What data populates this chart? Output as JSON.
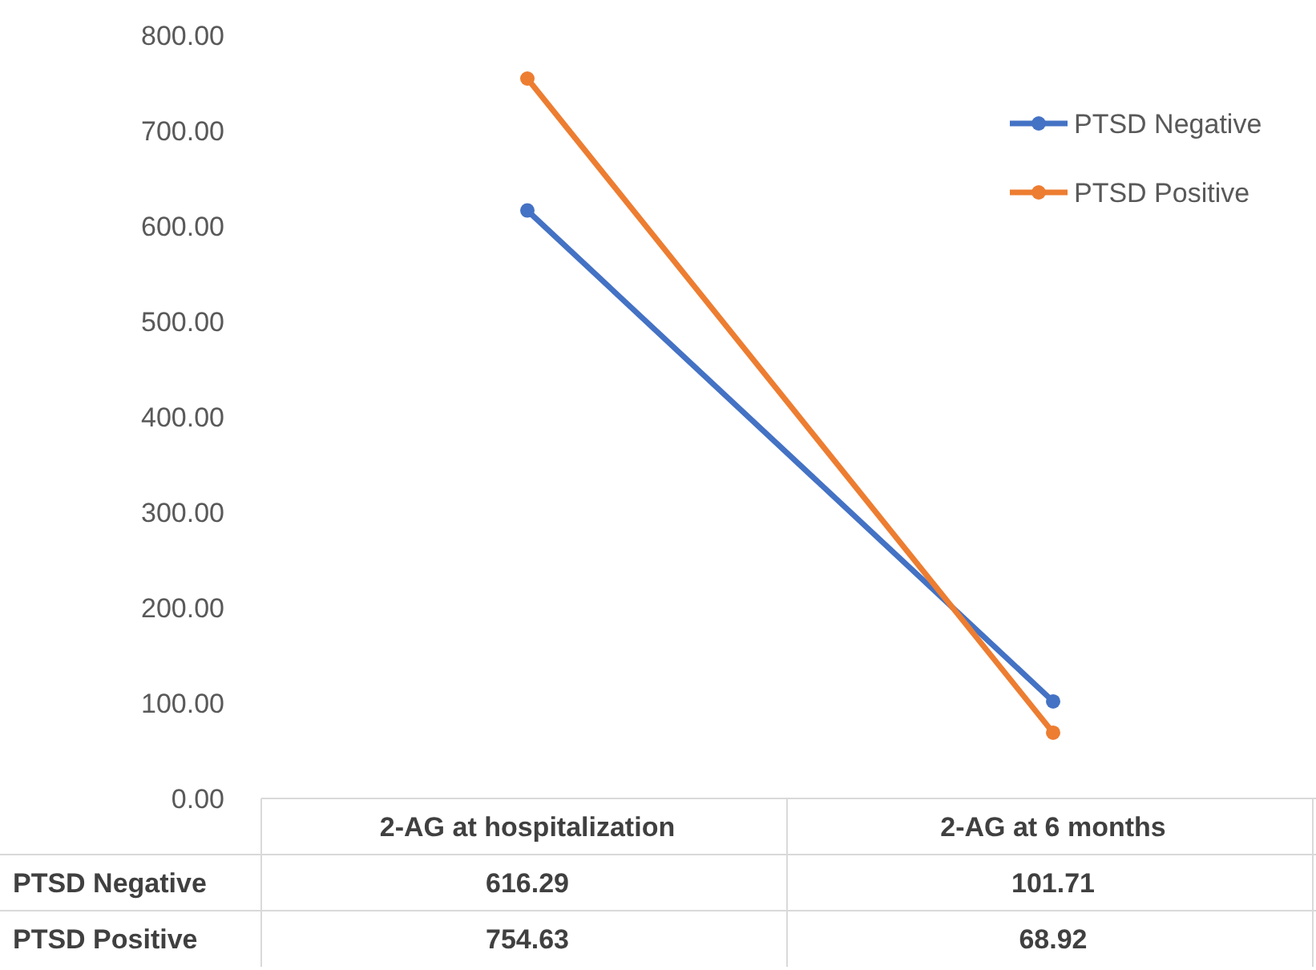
{
  "chart_data": {
    "type": "line",
    "categories": [
      "2-AG at hospitalization",
      "2-AG at 6 months"
    ],
    "series": [
      {
        "name": "PTSD Negative",
        "color": "#4472c4",
        "values": [
          616.29,
          101.71
        ]
      },
      {
        "name": "PTSD Positive",
        "color": "#ed7d31",
        "values": [
          754.63,
          68.92
        ]
      }
    ],
    "ylim": [
      0,
      800
    ],
    "yticks": [
      {
        "value": 0,
        "label": "0.00"
      },
      {
        "value": 100,
        "label": "100.00"
      },
      {
        "value": 200,
        "label": "200.00"
      },
      {
        "value": 300,
        "label": "300.00"
      },
      {
        "value": 400,
        "label": "400.00"
      },
      {
        "value": 500,
        "label": "500.00"
      },
      {
        "value": 600,
        "label": "600.00"
      },
      {
        "value": 700,
        "label": "700.00"
      },
      {
        "value": 800,
        "label": "800.00"
      }
    ],
    "legend": "top right",
    "marker": "circle",
    "line_style": "solid",
    "data_labels": true
  }
}
